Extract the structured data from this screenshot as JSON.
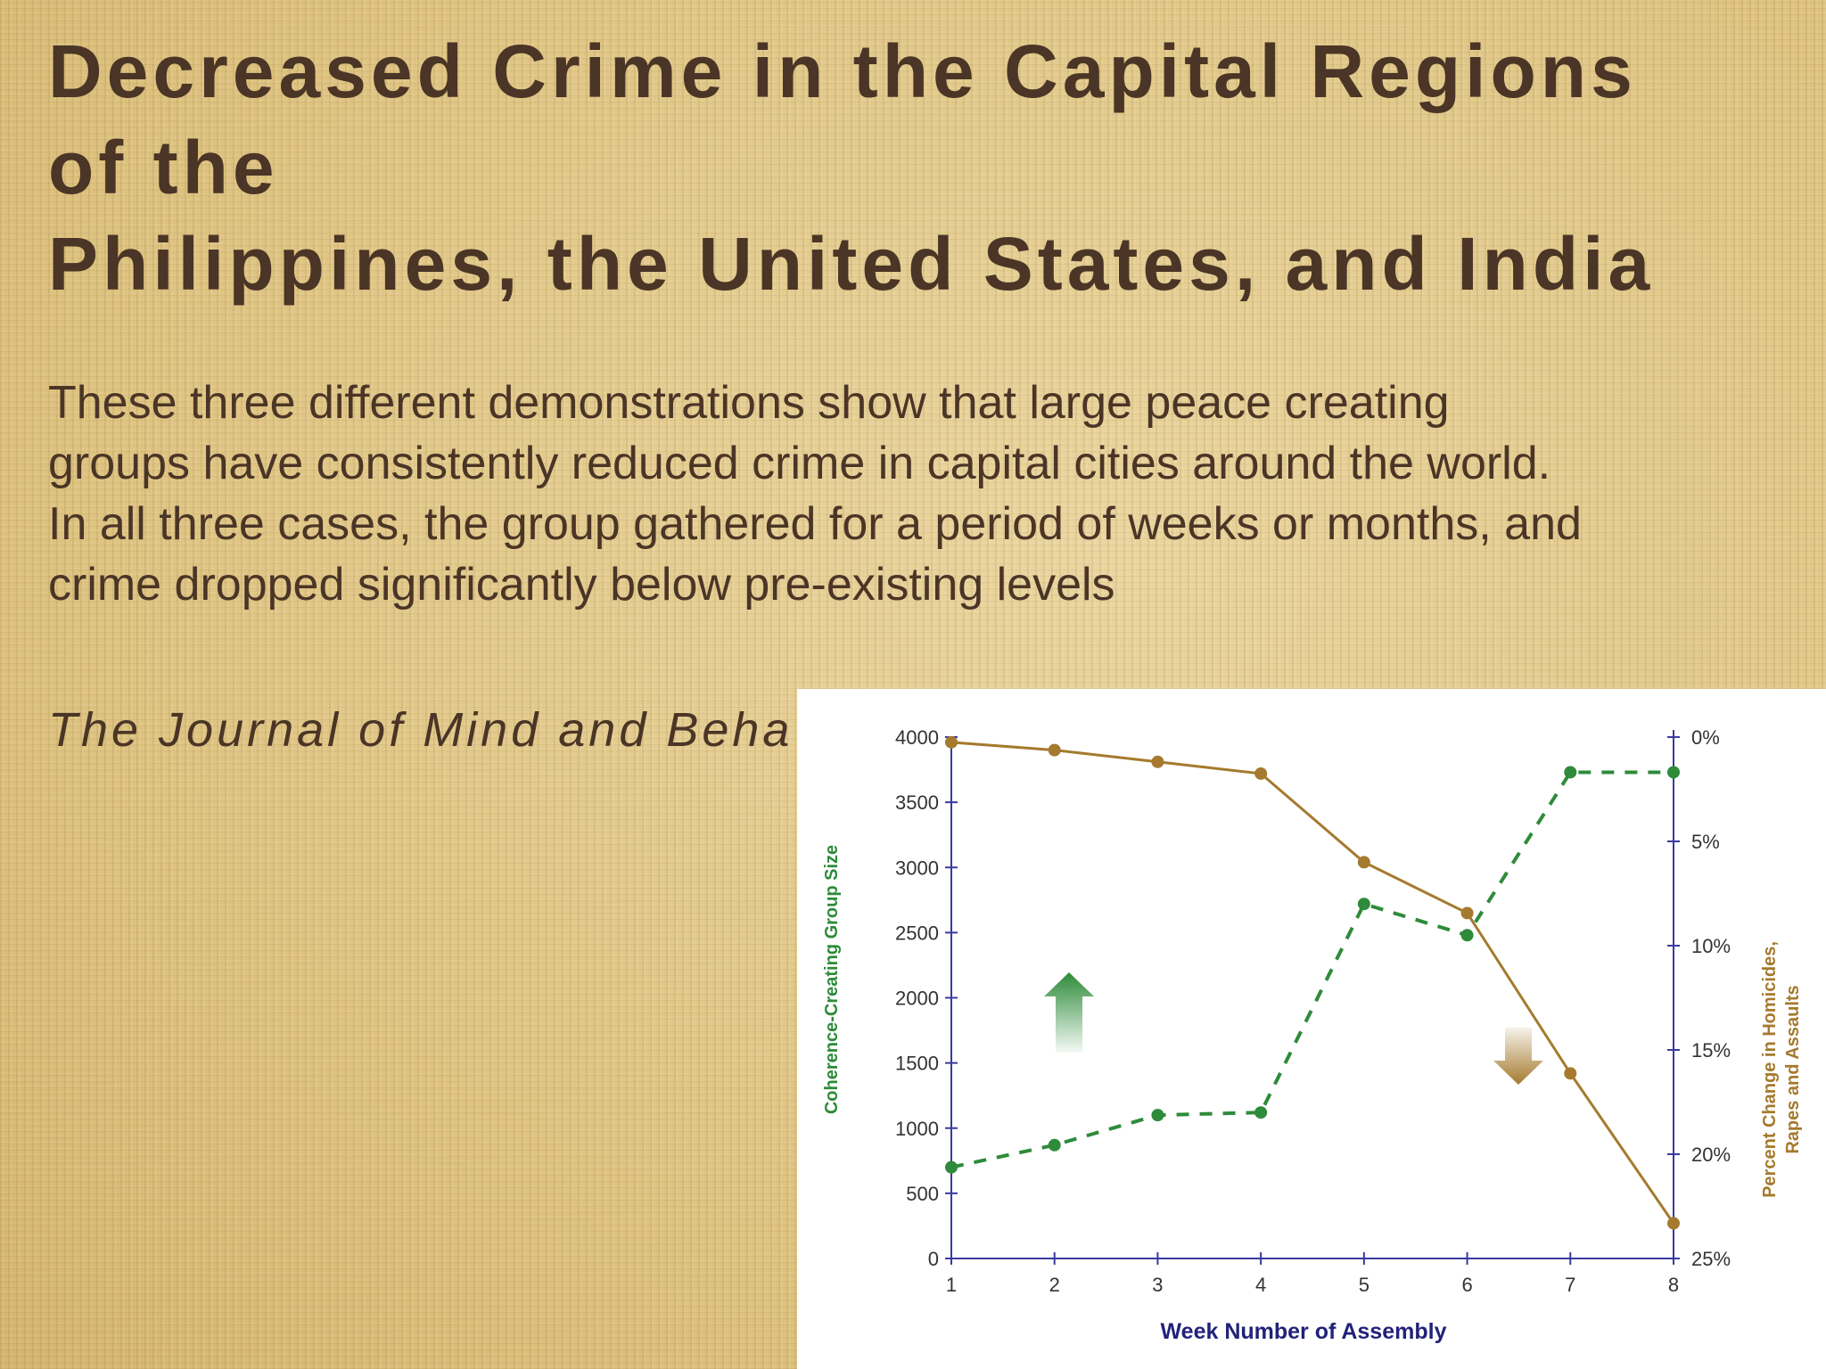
{
  "slide": {
    "title_lines": [
      "Decreased Crime in the Capital Regions",
      "of the",
      "Philippines, the United States, and India"
    ],
    "body_lines": [
      "These three different demonstrations show that large peace creating",
      "groups have consistently reduced crime in capital cities around the world.",
      "In all three cases, the group gathered for a period of weeks or months, and",
      "crime dropped significantly below pre-existing levels"
    ],
    "citation": "The Journal of Mind and Beha"
  },
  "colors": {
    "text": "#4a3526",
    "group_size_series": "#2e8b3a",
    "crime_series": "#a57a2e",
    "axis": "#3a3aa0"
  },
  "icons": {
    "up_arrow": "green-up-arrow-icon",
    "down_arrow": "gold-down-arrow-icon"
  },
  "chart_data": {
    "type": "line",
    "title": "",
    "xlabel": "Week Number of Assembly",
    "ylabel_left": "Coherence-Creating Group Size",
    "ylabel_right": [
      "Percent Change in Homicides,",
      "Rapes and Assaults"
    ],
    "x": [
      1,
      2,
      3,
      4,
      5,
      6,
      7,
      8
    ],
    "x_ticks": [
      "1",
      "2",
      "3",
      "4",
      "5",
      "6",
      "7",
      "8"
    ],
    "y_left_ticks": [
      "0",
      "500",
      "1000",
      "1500",
      "2000",
      "2500",
      "3000",
      "3500",
      "4000"
    ],
    "y_left_lim": [
      0,
      4000
    ],
    "y_right_ticks": [
      "0%",
      "5%",
      "10%",
      "15%",
      "20%",
      "25%"
    ],
    "y_right_lim": [
      0,
      25
    ],
    "grid": false,
    "series": [
      {
        "axis": "left",
        "style": "dashed",
        "values": [
          700,
          870,
          1100,
          1120,
          2720,
          2480,
          3730,
          3730
        ]
      },
      {
        "axis": "left",
        "style": "solid",
        "values": [
          3960,
          3900,
          3810,
          3720,
          3040,
          2650,
          1420,
          270
        ]
      }
    ]
  }
}
